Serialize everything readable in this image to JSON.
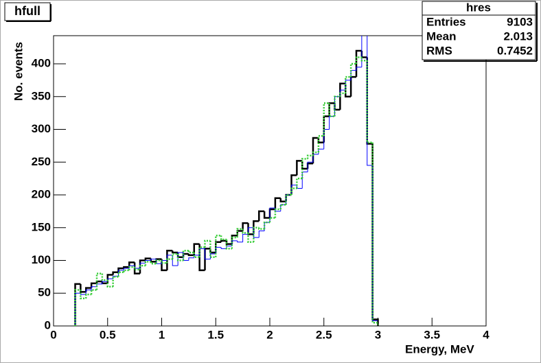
{
  "chart_data": {
    "type": "histogram",
    "title": "hfull",
    "xlabel": "Energy, MeV",
    "ylabel": "No. events",
    "bins": [
      0.2,
      0.25,
      0.3,
      0.35,
      0.4,
      0.45,
      0.5,
      0.55,
      0.6,
      0.65,
      0.7,
      0.75,
      0.8,
      0.85,
      0.9,
      0.95,
      1.0,
      1.05,
      1.1,
      1.15,
      1.2,
      1.25,
      1.3,
      1.35,
      1.4,
      1.45,
      1.5,
      1.55,
      1.6,
      1.65,
      1.7,
      1.75,
      1.8,
      1.85,
      1.9,
      1.95,
      2.0,
      2.05,
      2.1,
      2.15,
      2.2,
      2.25,
      2.3,
      2.35,
      2.4,
      2.45,
      2.5,
      2.55,
      2.6,
      2.65,
      2.7,
      2.75,
      2.8,
      2.85,
      2.9,
      2.95,
      3.0
    ],
    "series": [
      {
        "color": "#000000",
        "style": "solid",
        "width": 2.5,
        "values": [
          64,
          52,
          58,
          65,
          68,
          65,
          78,
          82,
          88,
          90,
          97,
          80,
          100,
          103,
          98,
          102,
          85,
          115,
          112,
          105,
          110,
          108,
          125,
          85,
          118,
          112,
          128,
          130,
          125,
          138,
          145,
          157,
          140,
          160,
          175,
          165,
          178,
          195,
          190,
          200,
          230,
          252,
          240,
          248,
          287,
          280,
          320,
          340,
          330,
          370,
          350,
          380,
          420,
          410,
          278,
          10
        ]
      },
      {
        "color": "#0000ff",
        "style": "solid",
        "width": 1,
        "values": [
          50,
          48,
          55,
          60,
          64,
          68,
          72,
          76,
          85,
          88,
          92,
          88,
          96,
          100,
          102,
          95,
          100,
          108,
          92,
          112,
          100,
          104,
          108,
          118,
          102,
          110,
          120,
          118,
          122,
          130,
          128,
          140,
          150,
          135,
          145,
          158,
          180,
          175,
          185,
          200,
          215,
          210,
          235,
          250,
          262,
          270,
          300,
          320,
          350,
          360,
          375,
          390,
          395,
          465,
          245,
          8
        ]
      },
      {
        "color": "#33cc33",
        "style": "dotted",
        "width": 2.5,
        "values": [
          55,
          42,
          48,
          55,
          80,
          70,
          60,
          75,
          82,
          85,
          90,
          86,
          92,
          98,
          95,
          100,
          96,
          102,
          110,
          100,
          115,
          112,
          105,
          120,
          130,
          105,
          138,
          132,
          118,
          135,
          148,
          142,
          128,
          150,
          148,
          158,
          165,
          178,
          185,
          200,
          210,
          225,
          255,
          260,
          265,
          290,
          340,
          320,
          350,
          355,
          380,
          400,
          410,
          405,
          280,
          5
        ]
      }
    ],
    "xlim": [
      0,
      4
    ],
    "xticks": [
      0,
      0.5,
      1,
      1.5,
      2,
      2.5,
      3,
      3.5,
      4
    ],
    "ylim": [
      0,
      443
    ],
    "yticks": [
      0,
      50,
      100,
      150,
      200,
      250,
      300,
      350,
      400
    ],
    "stats": {
      "title": "hres",
      "rows": [
        [
          "Entries",
          "9103"
        ],
        [
          "Mean",
          "2.013"
        ],
        [
          "RMS",
          "0.7452"
        ]
      ]
    }
  }
}
